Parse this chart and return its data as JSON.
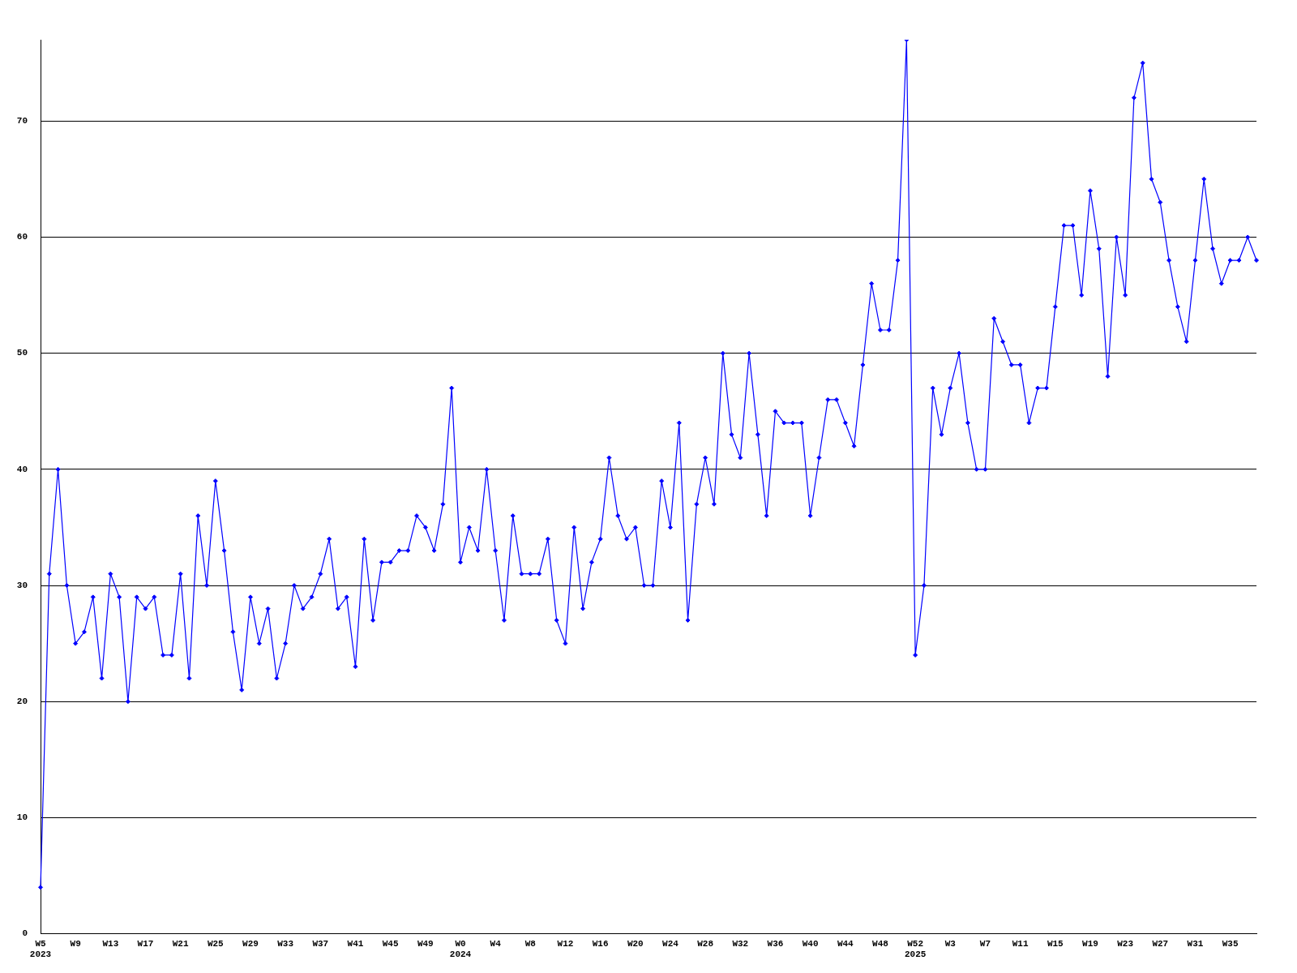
{
  "chart_data": {
    "type": "line",
    "color": "#0000ff",
    "marker": "diamond",
    "grid": "y",
    "ylim": [
      0,
      77
    ],
    "yticks": [
      0,
      10,
      20,
      30,
      40,
      50,
      60,
      70
    ],
    "categories": [
      "W5\n2023",
      null,
      null,
      null,
      "W9",
      null,
      null,
      null,
      "W13",
      null,
      null,
      null,
      "W17",
      null,
      null,
      null,
      "W21",
      null,
      null,
      null,
      "W25",
      null,
      null,
      null,
      "W29",
      null,
      null,
      null,
      "W33",
      null,
      null,
      null,
      "W37",
      null,
      null,
      null,
      "W41",
      null,
      null,
      null,
      "W45",
      null,
      null,
      null,
      "W49",
      null,
      null,
      null,
      "W0\n2024",
      null,
      null,
      null,
      "W4",
      null,
      null,
      null,
      "W8",
      null,
      null,
      null,
      "W12",
      null,
      null,
      null,
      "W16",
      null,
      null,
      null,
      "W20",
      null,
      null,
      null,
      "W24",
      null,
      null,
      null,
      "W28",
      null,
      null,
      null,
      "W32",
      null,
      null,
      null,
      "W36",
      null,
      null,
      null,
      "W40",
      null,
      null,
      null,
      "W44",
      null,
      null,
      null,
      "W48",
      null,
      null,
      null,
      "W52\n2025",
      null,
      null,
      null,
      "W3",
      null,
      null,
      null,
      "W7",
      null,
      null,
      null,
      "W11",
      null,
      null,
      null,
      "W15",
      null,
      null,
      null,
      "W19",
      null,
      null,
      null,
      "W23",
      null,
      null,
      null,
      "W27",
      null,
      null,
      null,
      "W31",
      null,
      null,
      null,
      "W35",
      null,
      null,
      null
    ],
    "values": [
      4,
      31,
      40,
      30,
      25,
      26,
      29,
      22,
      31,
      29,
      20,
      29,
      28,
      29,
      24,
      24,
      31,
      22,
      36,
      30,
      39,
      33,
      26,
      21,
      29,
      25,
      28,
      22,
      25,
      30,
      28,
      29,
      31,
      34,
      28,
      29,
      23,
      34,
      27,
      32,
      32,
      33,
      33,
      36,
      35,
      33,
      37,
      47,
      32,
      35,
      33,
      40,
      33,
      27,
      36,
      31,
      31,
      31,
      34,
      27,
      25,
      35,
      28,
      32,
      34,
      41,
      36,
      34,
      35,
      30,
      30,
      39,
      35,
      44,
      27,
      37,
      41,
      37,
      50,
      43,
      41,
      50,
      43,
      36,
      45,
      44,
      44,
      44,
      36,
      41,
      46,
      46,
      44,
      42,
      49,
      56,
      52,
      52,
      58,
      77,
      24,
      30,
      47,
      43,
      47,
      50,
      44,
      40,
      40,
      53,
      51,
      49,
      49,
      44,
      47,
      47,
      54,
      61,
      61,
      55,
      64,
      59,
      48,
      60,
      55,
      72,
      75,
      65,
      63,
      58,
      54,
      51,
      58,
      65,
      59,
      56,
      58,
      58,
      60,
      58
    ]
  }
}
